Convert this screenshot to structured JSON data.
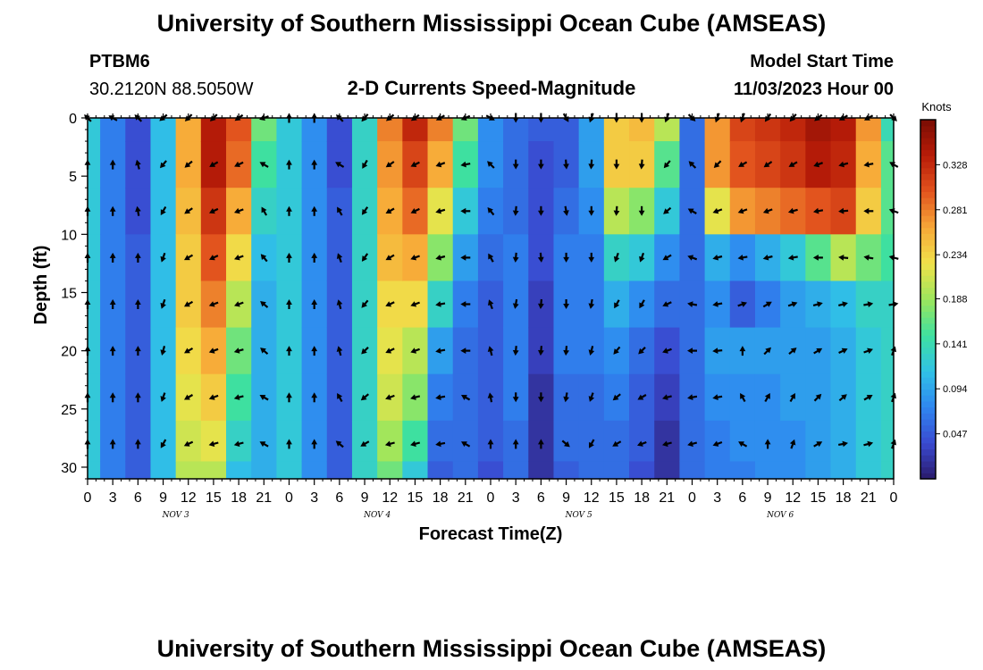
{
  "header": {
    "title": "University of Southern Mississippi Ocean Cube (AMSEAS)",
    "station_id": "PTBM6",
    "station_coords": "30.2120N  88.5050W",
    "plot_subtitle": "2-D Currents Speed-Magnitude",
    "model_start_label": "Model Start Time",
    "model_start_value": "11/03/2023 Hour 00"
  },
  "footer": {
    "title_repeat": "University of Southern Mississippi Ocean Cube (AMSEAS)"
  },
  "colors": {
    "scale": [
      "#2a1a6a",
      "#3a4ad0",
      "#2f86f0",
      "#30c2e6",
      "#3ee0a0",
      "#9ce65c",
      "#f0e24a",
      "#f7a838",
      "#e2541e",
      "#b81c08",
      "#7a0d04"
    ],
    "arrow": "#000000",
    "frame": "#000000"
  },
  "chart_data": {
    "type": "heatmap",
    "title": "2-D Currents Speed-Magnitude",
    "xlabel": "Forecast Time(Z)",
    "ylabel": "Depth (ft)",
    "x_unit": "hours since 11/03/2023 00Z",
    "xlim": [
      0,
      96
    ],
    "ylim": [
      0,
      31
    ],
    "y_inverted": true,
    "x_ticks": [
      0,
      3,
      6,
      9,
      12,
      15,
      18,
      21,
      24,
      27,
      30,
      33,
      36,
      39,
      42,
      45,
      48,
      51,
      54,
      57,
      60,
      63,
      66,
      69,
      72,
      75,
      78,
      81,
      84,
      87,
      90,
      93,
      96
    ],
    "x_tick_labels": [
      "0",
      "3",
      "6",
      "9",
      "12",
      "15",
      "18",
      "21",
      "0",
      "3",
      "6",
      "9",
      "12",
      "15",
      "18",
      "21",
      "0",
      "3",
      "6",
      "9",
      "12",
      "15",
      "18",
      "21",
      "0",
      "3",
      "6",
      "9",
      "12",
      "15",
      "18",
      "21",
      "0"
    ],
    "y_ticks": [
      0,
      5,
      10,
      15,
      20,
      25,
      30
    ],
    "y_tick_labels": [
      "0",
      "5",
      "10",
      "15",
      "20",
      "25",
      "30"
    ],
    "date_labels": [
      {
        "text": "NOV  3",
        "hour": 10.5
      },
      {
        "text": "NOV  4",
        "hour": 34.5
      },
      {
        "text": "NOV  5",
        "hour": 58.5
      },
      {
        "text": "NOV  6",
        "hour": 82.5
      }
    ],
    "colorbar": {
      "units": "Knots",
      "min": 0.0,
      "max": 0.375,
      "ticks": [
        0.047,
        0.094,
        0.141,
        0.188,
        0.234,
        0.281,
        0.328
      ],
      "tick_labels": [
        "0.047",
        "0.094",
        "0.141",
        "0.188",
        "0.234",
        "0.281",
        "0.328"
      ]
    },
    "speed_profiles": {
      "columns_per_hour": 1,
      "hours": [
        0,
        3,
        6,
        9,
        12,
        15,
        18,
        21,
        24,
        27,
        30,
        33,
        36,
        39,
        42,
        45,
        48,
        51,
        54,
        57,
        60,
        63,
        66,
        69,
        72,
        75,
        78,
        81,
        84,
        87,
        90,
        93,
        96
      ],
      "depths": [
        0,
        4,
        8,
        12,
        16,
        20,
        24,
        28,
        31
      ],
      "speed_knots": [
        [
          0.12,
          0.12,
          0.12,
          0.12,
          0.12,
          0.12,
          0.12,
          0.12,
          0.12
        ],
        [
          0.07,
          0.07,
          0.07,
          0.07,
          0.07,
          0.07,
          0.07,
          0.07,
          0.07
        ],
        [
          0.04,
          0.04,
          0.04,
          0.05,
          0.05,
          0.05,
          0.05,
          0.05,
          0.05
        ],
        [
          0.11,
          0.11,
          0.11,
          0.11,
          0.11,
          0.11,
          0.11,
          0.11,
          0.11
        ],
        [
          0.26,
          0.26,
          0.25,
          0.24,
          0.24,
          0.23,
          0.22,
          0.21,
          0.2
        ],
        [
          0.34,
          0.34,
          0.32,
          0.3,
          0.28,
          0.26,
          0.24,
          0.22,
          0.2
        ],
        [
          0.3,
          0.29,
          0.26,
          0.23,
          0.2,
          0.17,
          0.15,
          0.13,
          0.11
        ],
        [
          0.17,
          0.15,
          0.13,
          0.11,
          0.1,
          0.1,
          0.1,
          0.1,
          0.1
        ],
        [
          0.12,
          0.12,
          0.12,
          0.12,
          0.12,
          0.12,
          0.12,
          0.12,
          0.12
        ],
        [
          0.08,
          0.08,
          0.08,
          0.08,
          0.08,
          0.08,
          0.08,
          0.08,
          0.08
        ],
        [
          0.04,
          0.04,
          0.05,
          0.05,
          0.05,
          0.05,
          0.05,
          0.05,
          0.05
        ],
        [
          0.13,
          0.13,
          0.13,
          0.13,
          0.13,
          0.13,
          0.13,
          0.13,
          0.13
        ],
        [
          0.28,
          0.27,
          0.26,
          0.25,
          0.23,
          0.22,
          0.21,
          0.19,
          0.17
        ],
        [
          0.33,
          0.31,
          0.29,
          0.26,
          0.23,
          0.2,
          0.18,
          0.15,
          0.12
        ],
        [
          0.28,
          0.26,
          0.22,
          0.18,
          0.13,
          0.09,
          0.07,
          0.06,
          0.05
        ],
        [
          0.17,
          0.15,
          0.12,
          0.09,
          0.07,
          0.06,
          0.06,
          0.06,
          0.06
        ],
        [
          0.08,
          0.08,
          0.07,
          0.06,
          0.05,
          0.05,
          0.05,
          0.05,
          0.04
        ],
        [
          0.06,
          0.06,
          0.06,
          0.07,
          0.07,
          0.07,
          0.07,
          0.06,
          0.06
        ],
        [
          0.05,
          0.04,
          0.04,
          0.04,
          0.03,
          0.03,
          0.02,
          0.02,
          0.02
        ],
        [
          0.05,
          0.05,
          0.06,
          0.07,
          0.07,
          0.07,
          0.06,
          0.06,
          0.05
        ],
        [
          0.09,
          0.09,
          0.08,
          0.07,
          0.07,
          0.07,
          0.06,
          0.06,
          0.06
        ],
        [
          0.24,
          0.24,
          0.2,
          0.13,
          0.1,
          0.08,
          0.07,
          0.06,
          0.06
        ],
        [
          0.25,
          0.24,
          0.18,
          0.12,
          0.08,
          0.06,
          0.05,
          0.05,
          0.04
        ],
        [
          0.2,
          0.16,
          0.12,
          0.08,
          0.06,
          0.04,
          0.03,
          0.02,
          0.02
        ],
        [
          0.06,
          0.06,
          0.06,
          0.06,
          0.06,
          0.06,
          0.06,
          0.06,
          0.06
        ],
        [
          0.27,
          0.27,
          0.22,
          0.1,
          0.08,
          0.09,
          0.08,
          0.07,
          0.07
        ],
        [
          0.31,
          0.3,
          0.27,
          0.08,
          0.05,
          0.09,
          0.08,
          0.08,
          0.07
        ],
        [
          0.32,
          0.31,
          0.28,
          0.1,
          0.07,
          0.09,
          0.08,
          0.08,
          0.08
        ],
        [
          0.33,
          0.32,
          0.29,
          0.12,
          0.09,
          0.09,
          0.09,
          0.08,
          0.08
        ],
        [
          0.35,
          0.34,
          0.3,
          0.16,
          0.1,
          0.09,
          0.09,
          0.09,
          0.09
        ],
        [
          0.34,
          0.33,
          0.31,
          0.2,
          0.11,
          0.1,
          0.1,
          0.1,
          0.1
        ],
        [
          0.27,
          0.26,
          0.24,
          0.17,
          0.13,
          0.12,
          0.12,
          0.12,
          0.12
        ],
        [
          0.14,
          0.16,
          0.16,
          0.15,
          0.13,
          0.13,
          0.13,
          0.13,
          0.13
        ]
      ]
    },
    "current_arrows": {
      "note": "arrow direction in compass degrees (0 = north/up) at each hour x depth sample",
      "hours": [
        0,
        3,
        6,
        9,
        12,
        15,
        18,
        21,
        24,
        27,
        30,
        33,
        36,
        39,
        42,
        45,
        48,
        51,
        54,
        57,
        60,
        63,
        66,
        69,
        72,
        75,
        78,
        81,
        84,
        87,
        90,
        93,
        96
      ],
      "depths": [
        0,
        4,
        8,
        12,
        16,
        20,
        24,
        28
      ],
      "direction_deg": [
        [
          315,
          0,
          0,
          0,
          0,
          0,
          0,
          0
        ],
        [
          300,
          0,
          0,
          0,
          0,
          0,
          0,
          0
        ],
        [
          315,
          345,
          350,
          0,
          0,
          0,
          0,
          0
        ],
        [
          230,
          220,
          210,
          200,
          200,
          195,
          200,
          210
        ],
        [
          225,
          230,
          235,
          240,
          240,
          240,
          240,
          245
        ],
        [
          225,
          240,
          245,
          245,
          250,
          250,
          250,
          255
        ],
        [
          235,
          245,
          250,
          250,
          250,
          255,
          255,
          255
        ],
        [
          250,
          300,
          330,
          320,
          310,
          310,
          300,
          300
        ],
        [
          0,
          0,
          0,
          0,
          0,
          0,
          0,
          0
        ],
        [
          0,
          0,
          0,
          0,
          0,
          0,
          0,
          0
        ],
        [
          315,
          300,
          330,
          340,
          345,
          345,
          330,
          310
        ],
        [
          220,
          210,
          215,
          215,
          220,
          225,
          230,
          240
        ],
        [
          230,
          235,
          240,
          240,
          245,
          245,
          250,
          255
        ],
        [
          235,
          245,
          245,
          250,
          250,
          250,
          255,
          255
        ],
        [
          240,
          250,
          255,
          255,
          260,
          260,
          260,
          260
        ],
        [
          245,
          260,
          270,
          270,
          270,
          270,
          300,
          300
        ],
        [
          120,
          315,
          320,
          330,
          340,
          345,
          350,
          0
        ],
        [
          180,
          180,
          185,
          185,
          190,
          185,
          180,
          0
        ],
        [
          180,
          180,
          180,
          175,
          185,
          185,
          180,
          0
        ],
        [
          150,
          175,
          170,
          180,
          180,
          185,
          190,
          130
        ],
        [
          200,
          185,
          180,
          180,
          190,
          195,
          200,
          210
        ],
        [
          180,
          180,
          185,
          200,
          210,
          220,
          230,
          240
        ],
        [
          180,
          185,
          180,
          200,
          210,
          225,
          240,
          250
        ],
        [
          200,
          220,
          230,
          240,
          245,
          250,
          255,
          255
        ],
        [
          135,
          315,
          300,
          290,
          280,
          270,
          260,
          255
        ],
        [
          200,
          225,
          250,
          255,
          260,
          265,
          260,
          250
        ],
        [
          200,
          240,
          250,
          260,
          70,
          0,
          330,
          300
        ],
        [
          215,
          235,
          250,
          255,
          60,
          45,
          30,
          0
        ],
        [
          220,
          240,
          255,
          260,
          70,
          50,
          30,
          20
        ],
        [
          230,
          250,
          260,
          270,
          75,
          60,
          45,
          60
        ],
        [
          240,
          255,
          265,
          275,
          75,
          65,
          50,
          80
        ],
        [
          240,
          260,
          270,
          280,
          80,
          70,
          60,
          75
        ],
        [
          135,
          300,
          290,
          285,
          80,
          20,
          20,
          20
        ]
      ]
    }
  }
}
